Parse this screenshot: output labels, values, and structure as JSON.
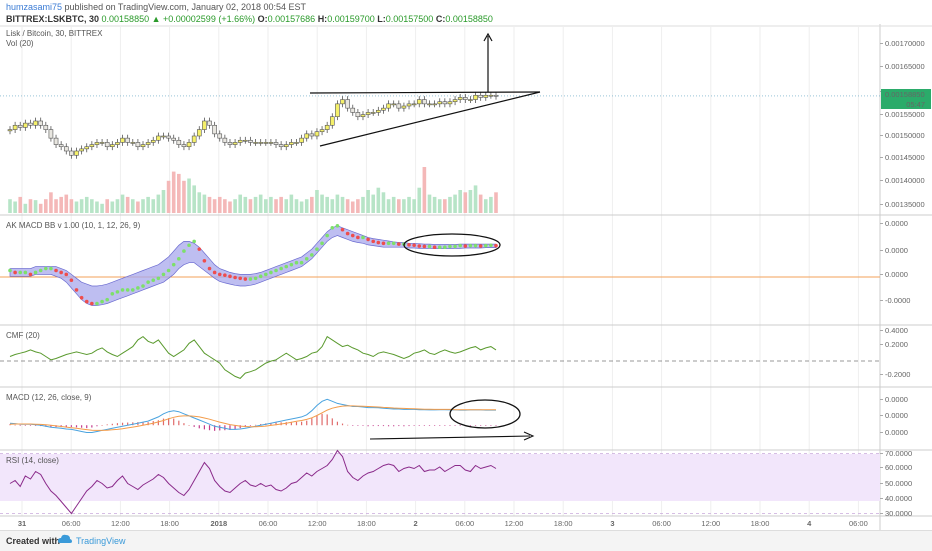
{
  "header": {
    "user": "humzasami75",
    "published_text": "published on TradingView.com, January 02, 2018 00:54 EST",
    "symbol_line": "BITTREX:LSKBTC, 30",
    "last_price": "0.00158850",
    "change": "▲ +0.00002599 (+1.66%)",
    "ohlc": [
      {
        "label": "O:",
        "value": "0.00157686"
      },
      {
        "label": "H:",
        "value": "0.00159700"
      },
      {
        "label": "L:",
        "value": "0.00157500"
      },
      {
        "label": "C:",
        "value": "0.00158850"
      }
    ]
  },
  "footer": {
    "created": "Created with",
    "brand": "TradingView"
  },
  "colors": {
    "up": "#f5f06a",
    "down": "#e8e6e0",
    "candle_border": "#555555",
    "band": "#a8a8ec",
    "dot_up": "#7de06a",
    "dot_down": "#ee4d4d",
    "cmf": "#5a9a2e",
    "macd": "#4aa3df",
    "signal": "#f39c4a",
    "rsi_bg": "#f2e6fb",
    "rsi_line": "#8a2a8a",
    "vol_up": "#b7e4c7",
    "vol_down": "#f4b8b8",
    "price_tag": "#2bab6a"
  },
  "chart_data": [
    {
      "type": "candlestick",
      "title": "Lisk / Bitcoin, 30, BITTREX",
      "sub_label": "Vol (20)",
      "x_ticks": [
        "31",
        "06:00",
        "12:00",
        "18:00",
        "2018",
        "06:00",
        "12:00",
        "18:00",
        "2",
        "06:00",
        "12:00",
        "18:00",
        "3",
        "06:00",
        "12:00",
        "18:00",
        "4",
        "06:00"
      ],
      "y_ticks": [
        "0.00170000",
        "0.00165000",
        "0.00160000",
        "0.00155000",
        "0.00150000",
        "0.00145000",
        "0.00140000",
        "0.00135000"
      ],
      "price_tag": "0.00158850",
      "countdown": "05:47",
      "ylim": [
        0.00132,
        0.00174
      ],
      "close": [
        0.00151,
        0.00152,
        0.001515,
        0.001525,
        0.00152,
        0.00153,
        0.00152,
        0.00151,
        0.00149,
        0.001475,
        0.00147,
        0.00146,
        0.00145,
        0.00146,
        0.001465,
        0.00147,
        0.001475,
        0.00148,
        0.00148,
        0.00147,
        0.001475,
        0.00148,
        0.00149,
        0.00148,
        0.00148,
        0.00147,
        0.001475,
        0.00148,
        0.001485,
        0.001495,
        0.001495,
        0.00149,
        0.001485,
        0.001475,
        0.00147,
        0.00148,
        0.001495,
        0.00151,
        0.00153,
        0.00152,
        0.0015,
        0.00149,
        0.00148,
        0.001475,
        0.00148,
        0.001485,
        0.001485,
        0.00148,
        0.00148,
        0.00148,
        0.00148,
        0.00148,
        0.001475,
        0.00147,
        0.001475,
        0.00148,
        0.00148,
        0.00149,
        0.0015,
        0.001495,
        0.001505,
        0.00151,
        0.00152,
        0.00154,
        0.00157,
        0.00158,
        0.00156,
        0.00155,
        0.00154,
        0.001545,
        0.00155,
        0.00155,
        0.001555,
        0.00156,
        0.00157,
        0.00157,
        0.00156,
        0.001565,
        0.00157,
        0.00157,
        0.00158,
        0.00157,
        0.00157,
        0.00157,
        0.001575,
        0.00157,
        0.001575,
        0.00158,
        0.001585,
        0.00158,
        0.00158,
        0.00159,
        0.001585,
        0.00159,
        0.00159,
        0.001588
      ],
      "volume": [
        0.3,
        0.25,
        0.35,
        0.2,
        0.3,
        0.28,
        0.2,
        0.3,
        0.45,
        0.3,
        0.35,
        0.4,
        0.3,
        0.25,
        0.3,
        0.35,
        0.3,
        0.25,
        0.2,
        0.3,
        0.25,
        0.3,
        0.4,
        0.35,
        0.3,
        0.25,
        0.3,
        0.35,
        0.3,
        0.4,
        0.5,
        0.7,
        0.9,
        0.85,
        0.7,
        0.75,
        0.6,
        0.45,
        0.4,
        0.35,
        0.3,
        0.35,
        0.3,
        0.25,
        0.3,
        0.4,
        0.35,
        0.3,
        0.35,
        0.4,
        0.3,
        0.35,
        0.3,
        0.35,
        0.3,
        0.4,
        0.3,
        0.25,
        0.3,
        0.35,
        0.5,
        0.4,
        0.35,
        0.3,
        0.4,
        0.35,
        0.3,
        0.25,
        0.3,
        0.35,
        0.5,
        0.4,
        0.55,
        0.45,
        0.3,
        0.35,
        0.3,
        0.3,
        0.35,
        0.3,
        0.55,
        1.0,
        0.4,
        0.35,
        0.3,
        0.3,
        0.35,
        0.4,
        0.5,
        0.45,
        0.5,
        0.6,
        0.4,
        0.3,
        0.35,
        0.45
      ]
    },
    {
      "type": "line",
      "title": "AK MACD BB v 1.00 (10, 1, 12, 26, 9)",
      "y_ticks": [
        "0.0000",
        "0.0000",
        "0.0000",
        "-0.0000"
      ],
      "ylim": [
        -1.3,
        1.3
      ],
      "baseline": 0,
      "macd_dots": [
        0.0,
        -0.05,
        -0.05,
        -0.05,
        -0.1,
        -0.05,
        0.0,
        0.05,
        0.05,
        0.0,
        -0.05,
        -0.1,
        -0.25,
        -0.5,
        -0.7,
        -0.8,
        -0.85,
        -0.85,
        -0.8,
        -0.75,
        -0.6,
        -0.55,
        -0.5,
        -0.5,
        -0.5,
        -0.45,
        -0.4,
        -0.3,
        -0.25,
        -0.2,
        -0.1,
        0.0,
        0.15,
        0.3,
        0.5,
        0.65,
        0.75,
        0.55,
        0.25,
        0.05,
        -0.05,
        -0.1,
        -0.12,
        -0.15,
        -0.18,
        -0.2,
        -0.22,
        -0.22,
        -0.2,
        -0.15,
        -0.1,
        -0.05,
        0.0,
        0.05,
        0.1,
        0.15,
        0.2,
        0.2,
        0.3,
        0.4,
        0.55,
        0.7,
        0.9,
        1.1,
        1.15,
        1.05,
        0.95,
        0.9,
        0.85,
        0.85,
        0.8,
        0.75,
        0.72,
        0.7,
        0.7,
        0.7,
        0.68,
        0.68,
        0.66,
        0.65,
        0.63,
        0.62,
        0.62,
        0.6,
        0.6,
        0.6,
        0.62,
        0.62,
        0.64,
        0.63,
        0.64,
        0.64,
        0.63,
        0.64,
        0.65,
        0.64
      ],
      "band_upper": [
        0.05,
        0.05,
        0.05,
        0.05,
        0.05,
        0.1,
        0.1,
        0.1,
        0.1,
        0.1,
        0.05,
        0.0,
        -0.1,
        -0.2,
        -0.3,
        -0.35,
        -0.4,
        -0.4,
        -0.38,
        -0.35,
        -0.3,
        -0.25,
        -0.2,
        -0.15,
        -0.1,
        -0.05,
        0.0,
        0.05,
        0.1,
        0.15,
        0.25,
        0.35,
        0.5,
        0.65,
        0.75,
        0.75,
        0.7,
        0.6,
        0.45,
        0.3,
        0.15,
        0.05,
        0.0,
        -0.05,
        -0.08,
        -0.1,
        -0.1,
        -0.1,
        -0.08,
        -0.05,
        0.0,
        0.05,
        0.1,
        0.15,
        0.2,
        0.25,
        0.3,
        0.35,
        0.45,
        0.55,
        0.7,
        0.85,
        1.0,
        1.1,
        1.15,
        1.1,
        1.05,
        1.0,
        0.95,
        0.9,
        0.85,
        0.82,
        0.8,
        0.78,
        0.76,
        0.74,
        0.72,
        0.72,
        0.7,
        0.7,
        0.69,
        0.68,
        0.68,
        0.67,
        0.67,
        0.67,
        0.67,
        0.67,
        0.68,
        0.68,
        0.68,
        0.68,
        0.68,
        0.68,
        0.68,
        0.68
      ],
      "band_lower": [
        -0.15,
        -0.15,
        -0.15,
        -0.15,
        -0.15,
        -0.1,
        -0.1,
        -0.1,
        -0.1,
        -0.15,
        -0.2,
        -0.3,
        -0.45,
        -0.6,
        -0.75,
        -0.85,
        -0.9,
        -0.9,
        -0.88,
        -0.85,
        -0.8,
        -0.75,
        -0.7,
        -0.65,
        -0.6,
        -0.55,
        -0.5,
        -0.45,
        -0.4,
        -0.35,
        -0.3,
        -0.2,
        -0.1,
        0.05,
        0.15,
        0.2,
        0.2,
        0.1,
        0.0,
        -0.1,
        -0.2,
        -0.28,
        -0.32,
        -0.35,
        -0.38,
        -0.4,
        -0.4,
        -0.38,
        -0.35,
        -0.3,
        -0.25,
        -0.2,
        -0.15,
        -0.1,
        -0.05,
        0.0,
        0.05,
        0.1,
        0.2,
        0.3,
        0.45,
        0.6,
        0.75,
        0.85,
        0.9,
        0.85,
        0.8,
        0.75,
        0.72,
        0.7,
        0.66,
        0.64,
        0.62,
        0.6,
        0.6,
        0.6,
        0.6,
        0.6,
        0.58,
        0.58,
        0.57,
        0.57,
        0.57,
        0.56,
        0.56,
        0.56,
        0.56,
        0.57,
        0.57,
        0.58,
        0.58,
        0.58,
        0.58,
        0.59,
        0.59,
        0.59
      ]
    },
    {
      "type": "line",
      "title": "CMF (20)",
      "y_ticks": [
        "0.4000",
        "0.2000",
        "-0.2000"
      ],
      "ylim": [
        -0.35,
        0.45
      ],
      "baseline": 0,
      "values": [
        0.05,
        0.08,
        0.1,
        0.12,
        0.15,
        0.12,
        0.1,
        0.05,
        0.0,
        0.02,
        0.05,
        0.08,
        0.1,
        0.12,
        0.1,
        0.08,
        0.1,
        0.15,
        0.18,
        0.12,
        0.08,
        0.05,
        0.1,
        0.15,
        0.2,
        0.3,
        0.35,
        0.28,
        0.25,
        0.3,
        0.2,
        0.1,
        0.05,
        0.1,
        0.15,
        0.25,
        0.3,
        0.2,
        0.1,
        0.05,
        0.0,
        -0.05,
        -0.15,
        -0.2,
        -0.25,
        -0.28,
        -0.2,
        -0.18,
        -0.15,
        -0.1,
        -0.05,
        -0.02,
        0.0,
        0.05,
        0.1,
        0.05,
        0.0,
        0.02,
        0.05,
        0.1,
        0.12,
        0.2,
        0.35,
        0.3,
        0.25,
        0.2,
        0.22,
        0.18,
        0.15,
        0.1,
        0.08,
        0.05,
        0.1,
        0.12,
        0.1,
        0.08,
        0.05,
        0.02,
        0.05,
        0.1,
        0.12,
        0.15,
        0.1,
        0.08,
        0.12,
        0.15,
        0.12,
        0.1,
        0.12,
        0.15,
        0.18,
        0.2,
        0.15,
        0.18,
        0.2,
        0.15
      ]
    },
    {
      "type": "line",
      "title": "MACD (12, 26, close, 9)",
      "y_ticks": [
        "0.0000",
        "0.0000",
        "0.0000"
      ],
      "ylim": [
        -1.0,
        1.6
      ],
      "baseline": 0,
      "macd": [
        0.1,
        0.08,
        0.05,
        0.05,
        0.05,
        0.02,
        0.0,
        -0.05,
        -0.1,
        -0.12,
        -0.15,
        -0.18,
        -0.2,
        -0.25,
        -0.3,
        -0.35,
        -0.35,
        -0.3,
        -0.25,
        -0.2,
        -0.15,
        -0.1,
        -0.05,
        0.0,
        0.05,
        0.1,
        0.15,
        0.2,
        0.3,
        0.4,
        0.55,
        0.65,
        0.7,
        0.65,
        0.55,
        0.45,
        0.35,
        0.25,
        0.15,
        0.05,
        -0.05,
        -0.1,
        -0.15,
        -0.2,
        -0.2,
        -0.18,
        -0.15,
        -0.1,
        -0.05,
        0.0,
        0.05,
        0.1,
        0.15,
        0.2,
        0.25,
        0.3,
        0.35,
        0.4,
        0.5,
        0.7,
        0.95,
        1.15,
        1.25,
        1.15,
        1.05,
        1.0,
        0.95,
        0.9,
        0.9,
        0.88,
        0.85,
        0.85,
        0.84,
        0.82,
        0.8,
        0.78,
        0.78,
        0.76,
        0.76,
        0.76,
        0.75,
        0.75,
        0.74,
        0.74,
        0.75,
        0.75,
        0.74,
        0.74,
        0.73,
        0.73,
        0.74,
        0.74,
        0.74,
        0.73,
        0.73,
        0.73
      ],
      "signal": [
        0.05,
        0.06,
        0.06,
        0.06,
        0.06,
        0.05,
        0.04,
        0.02,
        0.0,
        -0.03,
        -0.06,
        -0.09,
        -0.12,
        -0.15,
        -0.18,
        -0.21,
        -0.24,
        -0.25,
        -0.25,
        -0.24,
        -0.22,
        -0.2,
        -0.17,
        -0.13,
        -0.09,
        -0.05,
        0.0,
        0.05,
        0.1,
        0.16,
        0.23,
        0.31,
        0.38,
        0.43,
        0.45,
        0.45,
        0.43,
        0.4,
        0.35,
        0.29,
        0.22,
        0.15,
        0.09,
        0.03,
        -0.01,
        -0.04,
        -0.06,
        -0.07,
        -0.07,
        -0.06,
        -0.04,
        -0.01,
        0.02,
        0.06,
        0.1,
        0.14,
        0.19,
        0.23,
        0.28,
        0.36,
        0.47,
        0.6,
        0.73,
        0.82,
        0.88,
        0.92,
        0.93,
        0.93,
        0.92,
        0.91,
        0.9,
        0.89,
        0.88,
        0.86,
        0.85,
        0.83,
        0.82,
        0.81,
        0.8,
        0.79,
        0.78,
        0.77,
        0.77,
        0.76,
        0.76,
        0.76,
        0.76,
        0.75,
        0.75,
        0.75,
        0.75,
        0.75,
        0.75,
        0.75,
        0.75,
        0.75
      ]
    },
    {
      "type": "line",
      "title": "RSI (14, close)",
      "y_ticks": [
        "70.0000",
        "60.0000",
        "50.0000",
        "40.0000",
        "30.0000"
      ],
      "ylim": [
        27,
        72
      ],
      "values": [
        50,
        52,
        48,
        55,
        53,
        58,
        56,
        50,
        45,
        42,
        38,
        34,
        30,
        35,
        40,
        45,
        48,
        52,
        50,
        47,
        48,
        52,
        55,
        50,
        48,
        46,
        49,
        51,
        53,
        56,
        54,
        50,
        47,
        44,
        42,
        46,
        52,
        58,
        64,
        60,
        52,
        48,
        45,
        44,
        47,
        50,
        52,
        49,
        48,
        50,
        48,
        49,
        46,
        45,
        47,
        50,
        51,
        54,
        57,
        55,
        58,
        60,
        62,
        66,
        72,
        68,
        58,
        54,
        52,
        55,
        57,
        58,
        60,
        62,
        63,
        62,
        58,
        60,
        61,
        60,
        62,
        58,
        59,
        59,
        61,
        58,
        60,
        62,
        62,
        59,
        58,
        62,
        60,
        61,
        62,
        60
      ]
    }
  ]
}
